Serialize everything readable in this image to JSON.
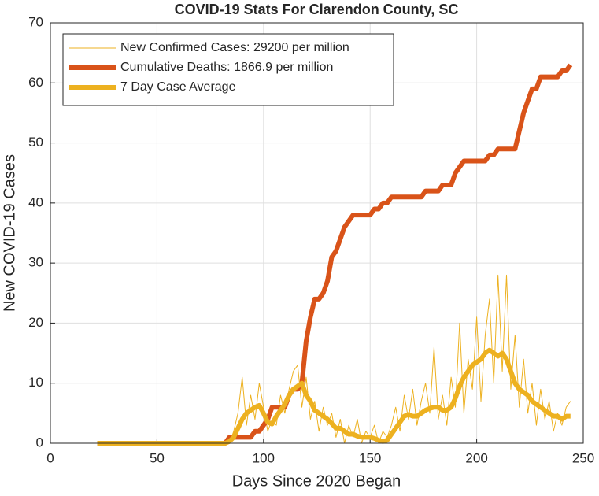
{
  "chart_data": {
    "type": "line",
    "title": "COVID-19 Stats For Clarendon County, SC",
    "xlabel": "Days Since 2020 Began",
    "ylabel": "New COVID-19 Cases",
    "xlim": [
      0,
      250
    ],
    "xticks": [
      0,
      50,
      100,
      150,
      200,
      250
    ],
    "ylim": [
      0,
      70
    ],
    "yticks": [
      0,
      10,
      20,
      30,
      40,
      50,
      60,
      70
    ],
    "grid": true,
    "legend": "northwest",
    "x": [
      22,
      24,
      26,
      28,
      30,
      32,
      34,
      36,
      38,
      40,
      42,
      44,
      46,
      48,
      50,
      52,
      54,
      56,
      58,
      60,
      62,
      64,
      66,
      68,
      70,
      72,
      74,
      76,
      78,
      80,
      82,
      84,
      86,
      88,
      90,
      92,
      94,
      96,
      98,
      100,
      102,
      104,
      106,
      108,
      110,
      112,
      114,
      116,
      118,
      120,
      122,
      124,
      126,
      128,
      130,
      132,
      134,
      136,
      138,
      140,
      142,
      144,
      146,
      148,
      150,
      152,
      154,
      156,
      158,
      160,
      162,
      164,
      166,
      168,
      170,
      172,
      174,
      176,
      178,
      180,
      182,
      184,
      186,
      188,
      190,
      192,
      194,
      196,
      198,
      200,
      202,
      204,
      206,
      208,
      210,
      212,
      214,
      216,
      218,
      220,
      222,
      224,
      226,
      228,
      230,
      232,
      234,
      236,
      238,
      240,
      242,
      244
    ],
    "series": [
      {
        "name": "New Confirmed Cases: 29200 per million",
        "color": "#EDB120",
        "width": 1,
        "values": [
          0,
          0,
          0,
          0,
          0,
          0,
          0,
          0,
          0,
          0,
          0,
          0,
          0,
          0,
          0,
          0,
          0,
          0,
          0,
          0,
          0,
          0,
          0,
          0,
          0,
          0,
          0,
          0,
          0,
          0,
          0,
          0,
          2,
          5,
          11,
          3,
          8,
          4,
          10,
          6,
          2,
          4,
          3,
          8,
          5,
          9,
          12,
          13,
          6,
          11,
          4,
          7,
          2,
          6,
          3,
          5,
          1,
          4,
          0,
          3,
          1,
          4,
          0,
          2,
          1,
          3,
          0,
          2,
          1,
          3,
          6,
          2,
          8,
          4,
          9,
          3,
          7,
          10,
          5,
          16,
          4,
          8,
          3,
          11,
          6,
          20,
          5,
          14,
          9,
          21,
          7,
          18,
          24,
          10,
          28,
          12,
          28,
          9,
          18,
          6,
          14,
          5,
          10,
          3,
          9,
          4,
          7,
          2,
          5,
          3,
          6,
          7
        ]
      },
      {
        "name": "Cumulative Deaths: 1866.9 per million",
        "color": "#D95319",
        "width": 6,
        "values": [
          0,
          0,
          0,
          0,
          0,
          0,
          0,
          0,
          0,
          0,
          0,
          0,
          0,
          0,
          0,
          0,
          0,
          0,
          0,
          0,
          0,
          0,
          0,
          0,
          0,
          0,
          0,
          0,
          0,
          0,
          0,
          1,
          1,
          1,
          1,
          1,
          1,
          2,
          2,
          3,
          4,
          6,
          6,
          6,
          6,
          8,
          9,
          9,
          10,
          17,
          21,
          24,
          24,
          25,
          27,
          31,
          32,
          34,
          36,
          37,
          38,
          38,
          38,
          38,
          38,
          39,
          39,
          40,
          40,
          41,
          41,
          41,
          41,
          41,
          41,
          41,
          41,
          42,
          42,
          42,
          42,
          43,
          43,
          43,
          45,
          46,
          47,
          47,
          47,
          47,
          47,
          47,
          48,
          48,
          49,
          49,
          49,
          49,
          49,
          52,
          55,
          57,
          59,
          59,
          61,
          61,
          61,
          61,
          61,
          62,
          62,
          63
        ]
      },
      {
        "name": "7 Day Case Average",
        "color": "#EDB120",
        "width": 6,
        "values": [
          0,
          0,
          0,
          0,
          0,
          0,
          0,
          0,
          0,
          0,
          0,
          0,
          0,
          0,
          0,
          0,
          0,
          0,
          0,
          0,
          0,
          0,
          0,
          0,
          0,
          0,
          0,
          0,
          0,
          0,
          0,
          0.3,
          1,
          2.5,
          4,
          5,
          5.5,
          6,
          6.3,
          5,
          3.5,
          3.2,
          4.5,
          5.5,
          6.5,
          8,
          9,
          9.5,
          10,
          8,
          7,
          5.5,
          5,
          4.5,
          4,
          3.3,
          2.5,
          2.5,
          2,
          1.5,
          1.5,
          1.2,
          1,
          1,
          1,
          0.8,
          0.5,
          0.3,
          0.5,
          1.5,
          2.5,
          3.5,
          4.5,
          4.8,
          4.5,
          4.5,
          5,
          5.5,
          5.8,
          6,
          6,
          5.5,
          5.5,
          6,
          7.5,
          9.5,
          11,
          12,
          13,
          13.5,
          14,
          15,
          15.5,
          15,
          14.5,
          15,
          14,
          12,
          10,
          9,
          8.5,
          8,
          7,
          6.5,
          6,
          5.5,
          5,
          4.5,
          4.5,
          4,
          4.5,
          4.5
        ]
      }
    ]
  }
}
